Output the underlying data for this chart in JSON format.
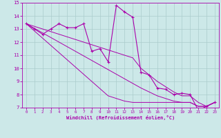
{
  "xlabel": "Windchill (Refroidissement éolien,°C)",
  "bg_color": "#cce8e8",
  "grid_color": "#aacccc",
  "line_color": "#aa00aa",
  "x_data": [
    0,
    1,
    2,
    3,
    4,
    5,
    6,
    7,
    8,
    9,
    10,
    11,
    12,
    13,
    14,
    15,
    16,
    17,
    18,
    19,
    20,
    21,
    22,
    23
  ],
  "y_main": [
    13.4,
    13.0,
    12.6,
    13.0,
    13.4,
    13.1,
    13.1,
    13.4,
    11.3,
    11.5,
    10.5,
    14.8,
    14.3,
    13.9,
    9.7,
    9.5,
    8.5,
    8.4,
    8.0,
    8.1,
    8.0,
    6.8,
    7.1,
    7.4
  ],
  "y_line1": [
    13.4,
    12.85,
    12.3,
    11.75,
    11.2,
    10.65,
    10.1,
    9.55,
    9.0,
    8.45,
    7.9,
    7.7,
    7.5,
    7.4,
    7.4,
    7.4,
    7.4,
    7.4,
    7.4,
    7.4,
    7.4,
    7.1,
    7.1,
    7.4
  ],
  "y_line2": [
    13.4,
    13.05,
    12.7,
    12.35,
    12.0,
    11.65,
    11.3,
    10.95,
    10.6,
    10.25,
    9.9,
    9.55,
    9.2,
    8.85,
    8.5,
    8.2,
    7.9,
    7.7,
    7.5,
    7.4,
    7.4,
    7.1,
    7.1,
    7.4
  ],
  "y_line3": [
    13.4,
    13.2,
    13.0,
    12.8,
    12.6,
    12.4,
    12.2,
    12.0,
    11.8,
    11.6,
    11.4,
    11.2,
    11.0,
    10.8,
    10.0,
    9.5,
    9.0,
    8.6,
    8.2,
    7.9,
    7.9,
    7.4,
    7.1,
    7.4
  ],
  "xlim": [
    -0.5,
    23.5
  ],
  "ylim": [
    7,
    15
  ],
  "yticks": [
    7,
    8,
    9,
    10,
    11,
    12,
    13,
    14,
    15
  ],
  "xticks": [
    0,
    1,
    2,
    3,
    4,
    5,
    6,
    7,
    8,
    9,
    10,
    11,
    12,
    13,
    14,
    15,
    16,
    17,
    18,
    19,
    20,
    21,
    22,
    23
  ]
}
